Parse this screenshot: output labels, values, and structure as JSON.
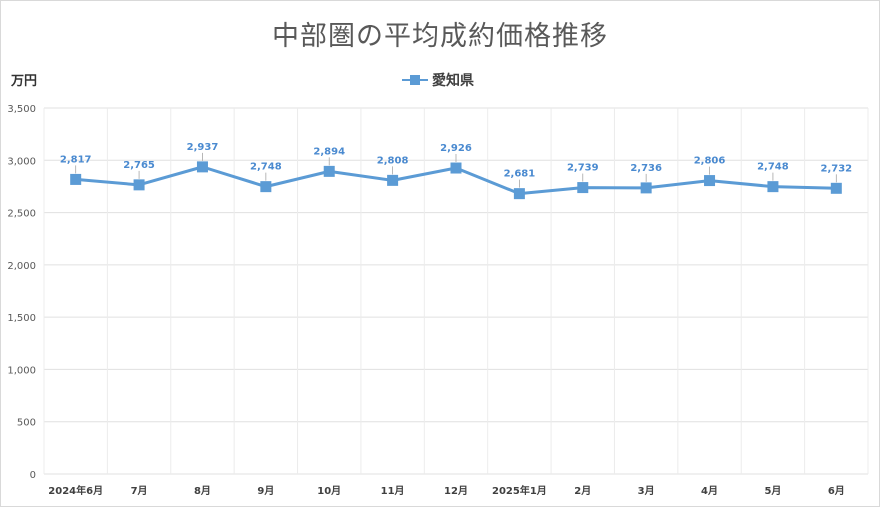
{
  "chart_data": {
    "type": "line",
    "title": "中部圏の平均成約価格推移",
    "ylabel": "万円",
    "xlabel": "",
    "categories": [
      "2024年6月",
      "7月",
      "8月",
      "9月",
      "10月",
      "11月",
      "12月",
      "2025年1月",
      "2月",
      "3月",
      "4月",
      "5月",
      "6月"
    ],
    "series": [
      {
        "name": "愛知県",
        "values": [
          2817,
          2765,
          2937,
          2748,
          2894,
          2808,
          2926,
          2681,
          2739,
          2736,
          2806,
          2748,
          2732
        ],
        "labels": [
          "2,817",
          "2,765",
          "2,937",
          "2,748",
          "2,894",
          "2,808",
          "2,926",
          "2,681",
          "2,739",
          "2,736",
          "2,806",
          "2,748",
          "2,732"
        ],
        "color": "#5b9bd5"
      }
    ],
    "ylim": [
      0,
      3500
    ],
    "yticks": [
      0,
      500,
      1000,
      1500,
      2000,
      2500,
      3000,
      3500
    ],
    "ytick_labels": [
      "0",
      "500",
      "1,000",
      "1,500",
      "2,000",
      "2,500",
      "3,000",
      "3,500"
    ],
    "grid": true,
    "legend": "top-center"
  },
  "colors": {
    "series": "#5b9bd5",
    "label": "#4a8ad0",
    "grid": "#e0e0e0"
  }
}
